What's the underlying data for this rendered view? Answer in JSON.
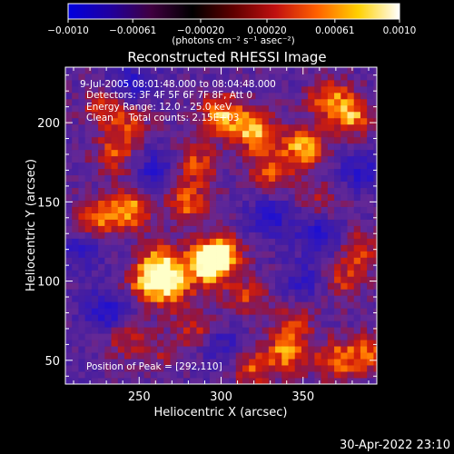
{
  "chart_data": {
    "type": "heatmap",
    "title": "Reconstructed RHESSI Image",
    "xlabel": "Heliocentric X (arcsec)",
    "ylabel": "Heliocentric Y (arcsec)",
    "xlim": [
      205,
      395
    ],
    "ylim": [
      35,
      235
    ],
    "x_ticks": [
      250,
      300,
      350
    ],
    "y_ticks": [
      50,
      100,
      150,
      200
    ],
    "x_tick_labels": [
      "250",
      "300",
      "350"
    ],
    "y_tick_labels": [
      "50",
      "100",
      "150",
      "200"
    ],
    "colorbar": {
      "range": [
        -0.001,
        0.001
      ],
      "ticks": [
        -0.001,
        -0.00061,
        -0.0002,
        0.0002,
        0.00061,
        0.001
      ],
      "tick_labels": [
        "−0.0010",
        "−0.00061",
        "−0.00020",
        "0.00020",
        "0.00061",
        "0.0010"
      ],
      "units": "(photons cm⁻² s⁻¹ asec⁻²)",
      "colors": [
        "#0000e0",
        "#2000a0",
        "#400040",
        "#000000",
        "#600000",
        "#c01010",
        "#ff6000",
        "#ffd000",
        "#ffffff"
      ]
    },
    "annotations": [
      "9-Jul-2005 08:01:48.000 to 08:04:48.000",
      "Detectors: 3F 4F 5F 6F 7F 8F, Att 0",
      "Energy Range: 12.0 - 25.0 keV",
      "Clean     Total counts: 2.15E+03"
    ],
    "peak_label": "Position of Peak = [292,110]",
    "hot_regions": [
      {
        "x": 292,
        "y": 110,
        "intensity": 1.0
      },
      {
        "x": 300,
        "y": 118,
        "intensity": 0.85
      },
      {
        "x": 265,
        "y": 112,
        "intensity": 0.8
      },
      {
        "x": 255,
        "y": 100,
        "intensity": 0.75
      },
      {
        "x": 270,
        "y": 95,
        "intensity": 0.7
      },
      {
        "x": 245,
        "y": 145,
        "intensity": 0.75
      },
      {
        "x": 225,
        "y": 140,
        "intensity": 0.7
      },
      {
        "x": 280,
        "y": 150,
        "intensity": 0.65
      },
      {
        "x": 300,
        "y": 205,
        "intensity": 0.8
      },
      {
        "x": 320,
        "y": 195,
        "intensity": 0.9
      },
      {
        "x": 350,
        "y": 185,
        "intensity": 0.85
      },
      {
        "x": 380,
        "y": 205,
        "intensity": 0.75
      },
      {
        "x": 365,
        "y": 215,
        "intensity": 0.65
      },
      {
        "x": 330,
        "y": 170,
        "intensity": 0.6
      },
      {
        "x": 285,
        "y": 175,
        "intensity": 0.55
      },
      {
        "x": 235,
        "y": 180,
        "intensity": 0.55
      },
      {
        "x": 228,
        "y": 210,
        "intensity": 0.5
      },
      {
        "x": 245,
        "y": 200,
        "intensity": 0.45
      },
      {
        "x": 340,
        "y": 55,
        "intensity": 0.7
      },
      {
        "x": 370,
        "y": 50,
        "intensity": 0.65
      },
      {
        "x": 390,
        "y": 55,
        "intensity": 0.6
      },
      {
        "x": 320,
        "y": 45,
        "intensity": 0.55
      },
      {
        "x": 315,
        "y": 90,
        "intensity": 0.5
      },
      {
        "x": 345,
        "y": 75,
        "intensity": 0.4
      },
      {
        "x": 375,
        "y": 100,
        "intensity": 0.45
      },
      {
        "x": 385,
        "y": 120,
        "intensity": 0.5
      },
      {
        "x": 240,
        "y": 65,
        "intensity": 0.4
      },
      {
        "x": 285,
        "y": 70,
        "intensity": 0.45
      },
      {
        "x": 260,
        "y": 55,
        "intensity": 0.3
      },
      {
        "x": 360,
        "y": 150,
        "intensity": 0.35
      }
    ],
    "cold_regions": [
      {
        "x": 230,
        "y": 80,
        "intensity": -0.6
      },
      {
        "x": 330,
        "y": 140,
        "intensity": -0.5
      },
      {
        "x": 360,
        "y": 130,
        "intensity": -0.55
      },
      {
        "x": 260,
        "y": 170,
        "intensity": -0.45
      },
      {
        "x": 215,
        "y": 120,
        "intensity": -0.4
      },
      {
        "x": 300,
        "y": 60,
        "intensity": -0.4
      },
      {
        "x": 245,
        "y": 225,
        "intensity": -0.5
      },
      {
        "x": 385,
        "y": 170,
        "intensity": -0.45
      },
      {
        "x": 350,
        "y": 100,
        "intensity": -0.35
      }
    ]
  },
  "footer": {
    "timestamp": "30-Apr-2022 23:10"
  }
}
